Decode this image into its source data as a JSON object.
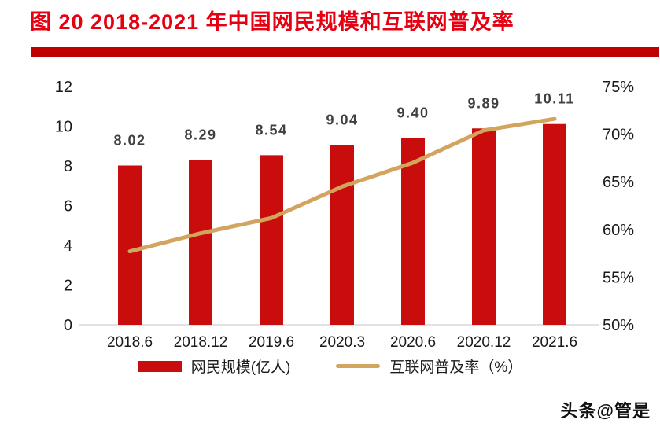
{
  "figure": {
    "title": "图 20 2018-2021 年中国网民规模和互联网普及率",
    "watermark": "头条@管是"
  },
  "colors": {
    "title_red": "#e60012",
    "divider_red": "#c00000",
    "bar_red": "#c90d0d",
    "line_gold": "#d2a45e",
    "bar_label_gray": "#404040",
    "axis_text": "#1a1a1a",
    "axis_line": "#d9d9d9"
  },
  "chart_data": {
    "type": "bar",
    "subtype": "bar+line dual axis",
    "categories": [
      "2018.6",
      "2018.12",
      "2019.6",
      "2020.3",
      "2020.6",
      "2020.12",
      "2021.6"
    ],
    "series": [
      {
        "name": "网民规模(亿人)",
        "type": "bar",
        "axis": "left",
        "values": [
          8.02,
          8.29,
          8.54,
          9.04,
          9.4,
          9.89,
          10.11
        ]
      },
      {
        "name": "互联网普及率（%）",
        "type": "line",
        "axis": "right",
        "values": [
          57.7,
          59.6,
          61.2,
          64.5,
          67.0,
          70.4,
          71.6
        ]
      }
    ],
    "bar_labels": [
      "8.02",
      "8.29",
      "8.54",
      "9.04",
      "9.40",
      "9.89",
      "10.11"
    ],
    "left_axis": {
      "min": 0,
      "max": 12,
      "step": 2,
      "ticks": [
        "0",
        "2",
        "4",
        "6",
        "8",
        "10",
        "12"
      ]
    },
    "right_axis": {
      "min": 50,
      "max": 75,
      "step": 5,
      "ticks": [
        "50%",
        "55%",
        "60%",
        "65%",
        "70%",
        "75%"
      ]
    },
    "grid": "off",
    "legend_position": "bottom",
    "legend": [
      {
        "label": "网民规模(亿人)",
        "swatch": "bar"
      },
      {
        "label": "互联网普及率（%）",
        "swatch": "line"
      }
    ]
  }
}
